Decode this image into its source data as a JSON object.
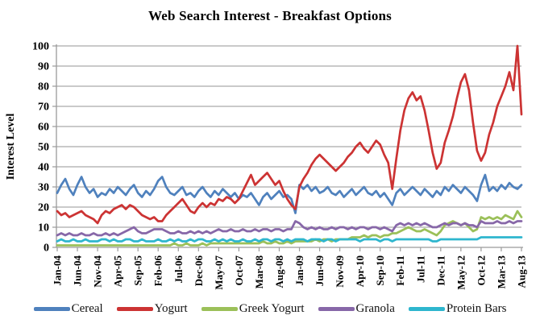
{
  "chart_data": {
    "type": "line",
    "title": "Web Search Interest - Breakfast Options",
    "ylabel": "Interest Level",
    "xlabel": "",
    "ylim": [
      0,
      100
    ],
    "y_ticks": [
      0,
      10,
      20,
      30,
      40,
      50,
      60,
      70,
      80,
      90,
      100
    ],
    "grid": "horizontal",
    "legend_position": "bottom",
    "x_tick_labels": [
      "Jan-04",
      "Jun-04",
      "Nov-04",
      "Apr-05",
      "Sep-05",
      "Feb-06",
      "Jul-06",
      "Dec-06",
      "May-07",
      "Oct-07",
      "Mar-08",
      "Aug-08",
      "Jan-09",
      "Jun-09",
      "Nov-09",
      "Apr-10",
      "Sep-10",
      "Feb-11",
      "Jul-11",
      "Dec-11",
      "May-12",
      "Oct-12",
      "Mar-13",
      "Aug-13"
    ],
    "x_tick_interval_months": 5,
    "x_range_note": "monthly points Jan-2004 through Aug-2013",
    "series": [
      {
        "name": "Cereal",
        "color": "#4F81BD",
        "values": [
          27,
          31,
          34,
          29,
          26,
          31,
          35,
          30,
          27,
          29,
          25,
          27,
          26,
          29,
          27,
          30,
          28,
          26,
          29,
          31,
          27,
          25,
          28,
          26,
          29,
          33,
          35,
          30,
          27,
          26,
          28,
          30,
          26,
          27,
          25,
          28,
          30,
          27,
          25,
          28,
          26,
          29,
          27,
          25,
          27,
          24,
          26,
          25,
          27,
          24,
          21,
          25,
          27,
          24,
          26,
          28,
          25,
          26,
          24,
          17,
          31,
          29,
          31,
          28,
          30,
          27,
          28,
          30,
          27,
          26,
          28,
          25,
          27,
          29,
          26,
          28,
          30,
          27,
          26,
          28,
          25,
          27,
          24,
          21,
          27,
          29,
          26,
          28,
          30,
          28,
          26,
          29,
          27,
          25,
          28,
          26,
          30,
          28,
          31,
          29,
          27,
          30,
          28,
          26,
          23,
          31,
          36,
          28,
          30,
          28,
          31,
          29,
          32,
          30,
          29,
          31
        ]
      },
      {
        "name": "Yogurt",
        "color": "#CC3333",
        "values": [
          18,
          16,
          17,
          15,
          16,
          17,
          18,
          16,
          15,
          14,
          12,
          16,
          18,
          17,
          19,
          20,
          21,
          19,
          21,
          20,
          18,
          16,
          15,
          14,
          15,
          13,
          13,
          16,
          18,
          20,
          22,
          24,
          21,
          18,
          17,
          20,
          22,
          20,
          22,
          21,
          24,
          23,
          25,
          24,
          22,
          24,
          28,
          32,
          36,
          31,
          33,
          35,
          37,
          34,
          31,
          33,
          28,
          24,
          21,
          19,
          30,
          34,
          37,
          41,
          44,
          46,
          44,
          42,
          40,
          38,
          40,
          42,
          45,
          47,
          50,
          52,
          49,
          47,
          50,
          53,
          51,
          46,
          42,
          29,
          44,
          58,
          68,
          74,
          77,
          73,
          75,
          68,
          58,
          47,
          39,
          42,
          52,
          58,
          65,
          74,
          82,
          86,
          78,
          62,
          48,
          43,
          47,
          56,
          62,
          70,
          75,
          80,
          87,
          78,
          100,
          66
        ]
      },
      {
        "name": "Greek Yogurt",
        "color": "#9BC059",
        "values": [
          1,
          1,
          1,
          1,
          1,
          1,
          1,
          1,
          1,
          1,
          1,
          1,
          1,
          1,
          1,
          1,
          1,
          1,
          1,
          1,
          1,
          1,
          1,
          1,
          1,
          1,
          1,
          1,
          1,
          2,
          1,
          1,
          2,
          1,
          1,
          1,
          2,
          1,
          2,
          2,
          2,
          2,
          2,
          2,
          2,
          2,
          2,
          2,
          2,
          2,
          2,
          3,
          2,
          2,
          3,
          2,
          2,
          3,
          2,
          3,
          3,
          3,
          3,
          3,
          4,
          3,
          4,
          4,
          3,
          4,
          4,
          4,
          4,
          5,
          5,
          5,
          6,
          5,
          6,
          6,
          5,
          6,
          6,
          7,
          7,
          8,
          9,
          10,
          9,
          8,
          8,
          9,
          8,
          7,
          6,
          8,
          11,
          12,
          13,
          12,
          11,
          12,
          10,
          8,
          9,
          15,
          14,
          15,
          14,
          15,
          14,
          16,
          15,
          14,
          18,
          15
        ]
      },
      {
        "name": "Granola",
        "color": "#8767A8",
        "values": [
          6,
          7,
          6,
          7,
          6,
          6,
          7,
          6,
          6,
          7,
          6,
          6,
          7,
          6,
          7,
          6,
          7,
          8,
          9,
          10,
          8,
          7,
          7,
          8,
          9,
          9,
          9,
          8,
          7,
          7,
          8,
          7,
          7,
          8,
          7,
          8,
          7,
          8,
          7,
          8,
          9,
          8,
          8,
          9,
          8,
          8,
          9,
          8,
          8,
          9,
          8,
          9,
          9,
          8,
          9,
          9,
          8,
          9,
          9,
          13,
          12,
          10,
          9,
          10,
          9,
          10,
          9,
          9,
          10,
          9,
          10,
          10,
          9,
          10,
          9,
          10,
          10,
          9,
          10,
          10,
          9,
          10,
          9,
          8,
          11,
          12,
          11,
          12,
          11,
          12,
          11,
          12,
          11,
          10,
          10,
          11,
          12,
          11,
          12,
          12,
          11,
          12,
          11,
          11,
          10,
          13,
          12,
          12,
          12,
          13,
          12,
          12,
          13,
          12,
          13,
          13
        ]
      },
      {
        "name": "Protein Bars",
        "color": "#2EB6CE",
        "values": [
          3,
          4,
          3,
          3,
          4,
          3,
          3,
          4,
          3,
          3,
          3,
          4,
          4,
          3,
          4,
          3,
          3,
          4,
          4,
          3,
          3,
          4,
          3,
          3,
          3,
          4,
          3,
          3,
          4,
          3,
          4,
          3,
          3,
          4,
          3,
          4,
          4,
          3,
          3,
          4,
          3,
          4,
          3,
          4,
          3,
          3,
          4,
          3,
          3,
          4,
          3,
          4,
          4,
          3,
          4,
          4,
          3,
          4,
          3,
          4,
          4,
          4,
          3,
          4,
          4,
          4,
          3,
          4,
          4,
          3,
          4,
          4,
          4,
          4,
          4,
          3,
          4,
          4,
          4,
          4,
          3,
          4,
          4,
          3,
          4,
          4,
          4,
          4,
          4,
          4,
          4,
          4,
          4,
          3,
          3,
          4,
          4,
          4,
          4,
          4,
          4,
          4,
          4,
          4,
          4,
          5,
          5,
          5,
          5,
          5,
          5,
          5,
          5,
          5,
          5,
          5
        ]
      }
    ],
    "colors": {
      "grid": "#ABABAB",
      "axis": "#9A9A9A",
      "text": "#000000"
    }
  }
}
